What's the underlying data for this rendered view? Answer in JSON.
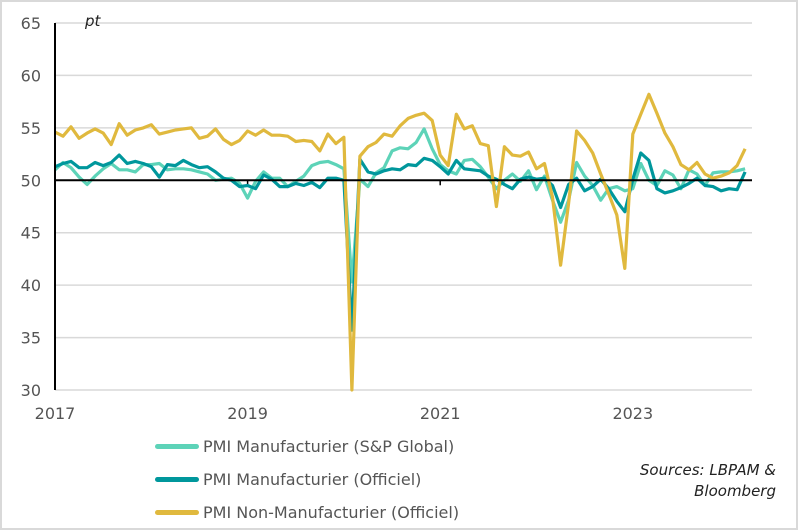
{
  "chart_data": {
    "type": "line",
    "unit_label": "pt",
    "ylim": [
      30,
      65
    ],
    "yticks": [
      30,
      35,
      40,
      45,
      50,
      55,
      60,
      65
    ],
    "xticks": [
      "2017",
      "2019",
      "2021",
      "2023"
    ],
    "x_start": "2017-01",
    "x_frequency": "monthly",
    "reference_line": 50,
    "grid": true,
    "legend_position": "bottom",
    "series": [
      {
        "name": "PMI Manufacturier (S&P Global)",
        "color": "#5dd3b8",
        "values": [
          51.0,
          51.7,
          51.2,
          50.3,
          49.6,
          50.4,
          51.1,
          51.6,
          51.0,
          51.0,
          50.8,
          51.5,
          51.5,
          51.6,
          51.0,
          51.1,
          51.1,
          51.0,
          50.8,
          50.6,
          50.0,
          50.1,
          50.2,
          49.7,
          48.3,
          49.9,
          50.8,
          50.2,
          50.2,
          49.4,
          49.9,
          50.4,
          51.4,
          51.7,
          51.8,
          51.5,
          51.1,
          40.3,
          50.1,
          49.4,
          50.7,
          51.2,
          52.8,
          53.1,
          53.0,
          53.6,
          54.9,
          53.0,
          51.5,
          50.9,
          50.6,
          51.9,
          52.0,
          51.3,
          50.3,
          49.2,
          50.0,
          50.6,
          49.9,
          50.9,
          49.1,
          50.4,
          48.1,
          46.0,
          48.1,
          51.7,
          50.4,
          49.5,
          48.1,
          49.2,
          49.4,
          49.0,
          49.2,
          51.6,
          50.0,
          49.5,
          50.9,
          50.5,
          49.2,
          51.0,
          50.6,
          49.5,
          50.7,
          50.8,
          50.8,
          50.9,
          51.1
        ]
      },
      {
        "name": "PMI Manufacturier (Officiel)",
        "color": "#00979c",
        "values": [
          51.3,
          51.6,
          51.8,
          51.2,
          51.2,
          51.7,
          51.4,
          51.7,
          52.4,
          51.6,
          51.8,
          51.6,
          51.3,
          50.3,
          51.5,
          51.4,
          51.9,
          51.5,
          51.2,
          51.3,
          50.8,
          50.2,
          50.0,
          49.4,
          49.5,
          49.2,
          50.5,
          50.1,
          49.4,
          49.4,
          49.7,
          49.5,
          49.8,
          49.3,
          50.2,
          50.2,
          50.0,
          35.7,
          52.0,
          50.8,
          50.6,
          50.9,
          51.1,
          51.0,
          51.5,
          51.4,
          52.1,
          51.9,
          51.3,
          50.6,
          51.9,
          51.1,
          51.0,
          50.9,
          50.4,
          50.1,
          49.6,
          49.2,
          50.1,
          50.3,
          50.1,
          50.2,
          49.5,
          47.4,
          49.6,
          50.2,
          49.0,
          49.4,
          50.1,
          49.2,
          48.0,
          47.0,
          50.1,
          52.6,
          51.9,
          49.2,
          48.8,
          49.0,
          49.3,
          49.7,
          50.2,
          49.5,
          49.4,
          49.0,
          49.2,
          49.1,
          50.8
        ]
      },
      {
        "name": "PMI Non-Manufacturier (Officiel)",
        "color": "#e0b93e",
        "values": [
          54.6,
          54.2,
          55.1,
          54.0,
          54.5,
          54.9,
          54.5,
          53.4,
          55.4,
          54.3,
          54.8,
          55.0,
          55.3,
          54.4,
          54.6,
          54.8,
          54.9,
          55.0,
          54.0,
          54.2,
          54.9,
          53.9,
          53.4,
          53.8,
          54.7,
          54.3,
          54.8,
          54.3,
          54.3,
          54.2,
          53.7,
          53.8,
          53.7,
          52.8,
          54.4,
          53.5,
          54.1,
          29.6,
          52.3,
          53.2,
          53.6,
          54.4,
          54.2,
          55.2,
          55.9,
          56.2,
          56.4,
          55.7,
          52.4,
          51.4,
          56.3,
          54.9,
          55.2,
          53.5,
          53.3,
          47.5,
          53.2,
          52.4,
          52.3,
          52.7,
          51.1,
          51.6,
          48.4,
          41.9,
          47.8,
          54.7,
          53.8,
          52.6,
          50.6,
          48.7,
          46.7,
          41.6,
          54.4,
          56.3,
          58.2,
          56.4,
          54.5,
          53.2,
          51.5,
          51.0,
          51.7,
          50.6,
          50.2,
          50.4,
          50.7,
          51.4,
          53.0
        ]
      }
    ]
  },
  "source": {
    "line1": "Sources: LBPAM &",
    "line2": "Bloomberg"
  }
}
